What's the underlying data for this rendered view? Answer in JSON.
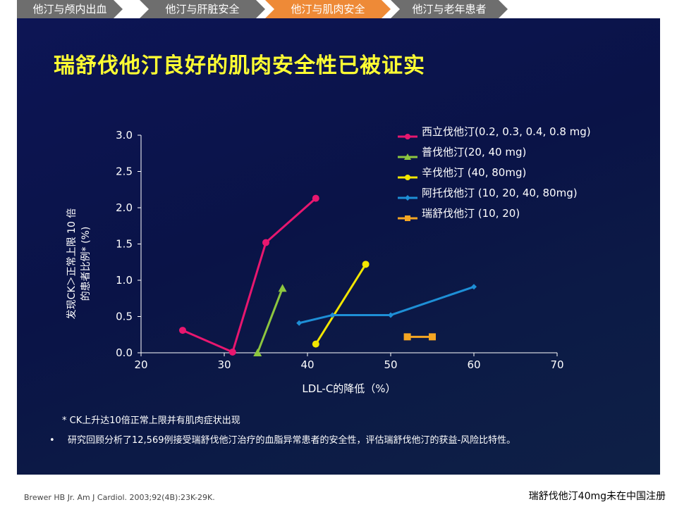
{
  "tabs": [
    {
      "label": "他汀与颅内出血",
      "active": false
    },
    {
      "label": "他汀与肝脏安全",
      "active": false
    },
    {
      "label": "他汀与肌肉安全",
      "active": true
    },
    {
      "label": "他汀与老年患者",
      "active": false
    }
  ],
  "title": "瑞舒伐他汀良好的肌肉安全性已被证实",
  "footnote": "* CK上升达10倍正常上限并有肌肉症状出现",
  "bullet": "研究回顾分析了12,569例接受瑞舒伐他汀治疗的血脂异常患者的安全性，评估瑞舒伐他汀的获益-风险比特性。",
  "bullet_mark": "•",
  "citation": "Brewer HB Jr. Am J Cardiol. 2003;92(4B):23K-29K.",
  "registration_note": "瑞舒伐他汀40mg未在中国注册",
  "chart_data": {
    "type": "line",
    "xlabel": "LDL-C的降低（%）",
    "ylabel_lines": [
      "发现CK＞正常上限 10 倍",
      "的患者比例* (%)"
    ],
    "xlim": [
      20,
      70
    ],
    "ylim": [
      0,
      3.0
    ],
    "x_ticks": [
      20,
      30,
      40,
      50,
      60,
      70
    ],
    "y_ticks": [
      0.0,
      0.5,
      1.0,
      1.5,
      2.0,
      2.5,
      3.0
    ],
    "x_tick_labels": [
      "20",
      "30",
      "40",
      "50",
      "60",
      "70"
    ],
    "y_tick_labels": [
      "0.0",
      "0.5",
      "1.0",
      "1.5",
      "2.0",
      "2.5",
      "3.0"
    ],
    "grid": false,
    "legend_position": "top-right",
    "series": [
      {
        "name": "西立伐他汀(0.2, 0.3, 0.4, 0.8 mg)",
        "color": "#e8176f",
        "marker": "circle",
        "points": [
          [
            25,
            0.31
          ],
          [
            31,
            0.01
          ],
          [
            35,
            1.52
          ],
          [
            41,
            2.13
          ]
        ]
      },
      {
        "name": "普伐他汀(20, 40 mg)",
        "color": "#8dc63f",
        "marker": "triangle",
        "points": [
          [
            34,
            0.0
          ],
          [
            37,
            0.89
          ]
        ]
      },
      {
        "name": "辛伐他汀 (40, 80mg)",
        "color": "#f2e600",
        "marker": "circle",
        "points": [
          [
            41,
            0.12
          ],
          [
            47,
            1.22
          ]
        ]
      },
      {
        "name": "阿托伐他汀 (10, 20, 40, 80mg)",
        "color": "#1e8fd6",
        "marker": "diamond",
        "points": [
          [
            39,
            0.41
          ],
          [
            43,
            0.52
          ],
          [
            50,
            0.52
          ],
          [
            60,
            0.91
          ]
        ]
      },
      {
        "name": "瑞舒伐他汀 (10, 20)",
        "color": "#f5a623",
        "marker": "square",
        "points": [
          [
            52,
            0.22
          ],
          [
            55,
            0.22
          ]
        ]
      }
    ]
  }
}
